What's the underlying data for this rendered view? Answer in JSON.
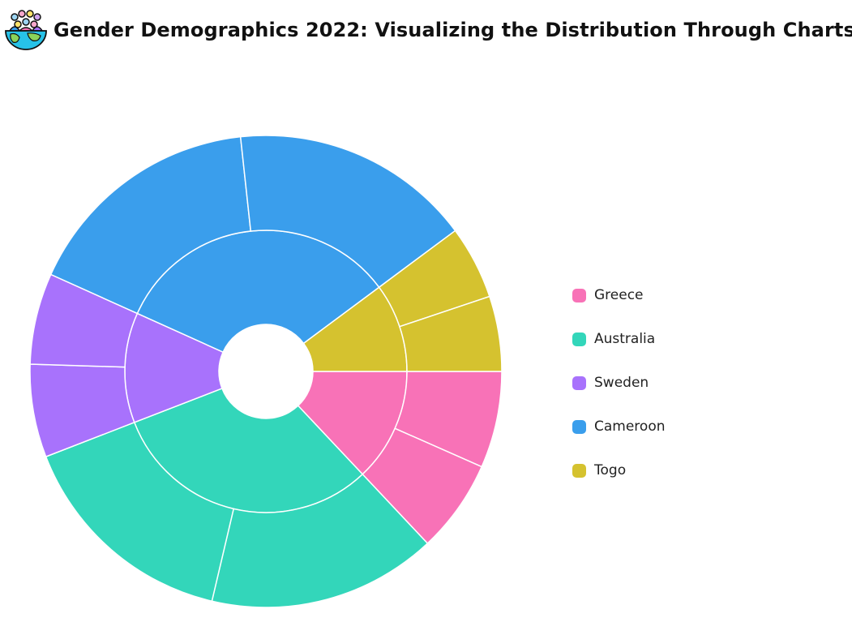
{
  "title": "Gender Demographics 2022: Visualizing the Distribution Through Charts",
  "logo_icon": "people-globe-icon",
  "chart_data": {
    "type": "sunburst",
    "title": "Gender Demographics 2022: Visualizing the Distribution Through Charts",
    "legend_position": "right",
    "categories": [
      "Greece",
      "Australia",
      "Sweden",
      "Cameroon",
      "Togo"
    ],
    "colors": [
      "#F872B7",
      "#33D6BA",
      "#A872FC",
      "#3A9EEC",
      "#D5C22F"
    ],
    "inner_ring": [
      {
        "name": "Greece",
        "value": 10.6
      },
      {
        "name": "Australia",
        "value": 25.4
      },
      {
        "name": "Sweden",
        "value": 10.3
      },
      {
        "name": "Cameroon",
        "value": 27.0
      },
      {
        "name": "Togo",
        "value": 8.3
      }
    ],
    "outer_ring": [
      {
        "parent": "Greece",
        "value": 5.4
      },
      {
        "parent": "Greece",
        "value": 5.2
      },
      {
        "parent": "Australia",
        "value": 12.8
      },
      {
        "parent": "Australia",
        "value": 12.6
      },
      {
        "parent": "Sweden",
        "value": 5.2
      },
      {
        "parent": "Sweden",
        "value": 5.1
      },
      {
        "parent": "Cameroon",
        "value": 13.5
      },
      {
        "parent": "Cameroon",
        "value": 13.5
      },
      {
        "parent": "Togo",
        "value": 4.1
      },
      {
        "parent": "Togo",
        "value": 4.2
      }
    ]
  }
}
